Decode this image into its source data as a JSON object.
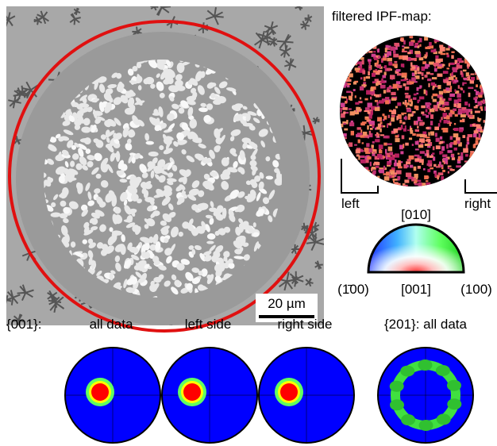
{
  "micrograph": {
    "scale_bar": "20 µm"
  },
  "ipf_map": {
    "title": "filtered IPF-map:",
    "left_label": "left",
    "right_label": "right"
  },
  "color_key": {
    "top": "[010]",
    "left": "(1̄00)",
    "center": "[001]",
    "right": "(100)"
  },
  "pole_figures": {
    "family_001": "{001}:",
    "labels": [
      "all data",
      "left side",
      "right side"
    ],
    "family_201": "{201}: all data"
  }
}
